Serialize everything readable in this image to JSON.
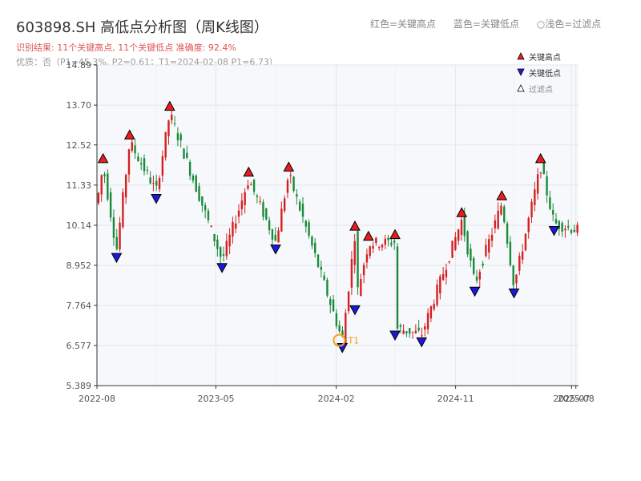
{
  "header": {
    "title": "603898.SH 高低点分析图（周K线图）",
    "subtitle": "识别结果: 11个关键高点, 11个关键低点  准确度: 92.4%",
    "info": "优质：否（P1=45.3%, P2=0.61；T1=2024-02-08 P1=6.73）",
    "legend_high": "红色=关键高点",
    "legend_low": "蓝色=关键低点",
    "legend_filtered": "○浅色=过滤点"
  },
  "colors": {
    "up": "#d42020",
    "down": "#1a8a3a",
    "high_marker": "#e81e1e",
    "low_marker": "#1a1ad8",
    "t1": "#f0a020"
  },
  "chart_data": {
    "type": "candlestick",
    "yticks": [
      "5.389",
      "6.577",
      "7.764",
      "8.952",
      "10.14",
      "11.33",
      "12.52",
      "13.70",
      "14.89"
    ],
    "ylim": [
      5.389,
      14.89
    ],
    "xticks": [
      "2022-08",
      "2023-05",
      "2024-02",
      "2024-11",
      "2025-07",
      "2025-08"
    ],
    "grid": true,
    "legend": {
      "position": "top-right",
      "entries": [
        "关键高点",
        "关键低点",
        "过滤点"
      ]
    },
    "key_highs": [
      {
        "x": "2022-08",
        "y": 11.9
      },
      {
        "x": "2022-10",
        "y": 12.6
      },
      {
        "x": "2023-01",
        "y": 13.45
      },
      {
        "x": "2023-07",
        "y": 11.5
      },
      {
        "x": "2023-10",
        "y": 11.65
      },
      {
        "x": "2024-03",
        "y": 9.9
      },
      {
        "x": "2024-04",
        "y": 9.6
      },
      {
        "x": "2024-06",
        "y": 9.65
      },
      {
        "x": "2024-11",
        "y": 10.3
      },
      {
        "x": "2025-02",
        "y": 10.8
      },
      {
        "x": "2025-05",
        "y": 11.9
      }
    ],
    "key_lows": [
      {
        "x": "2022-09",
        "y": 9.4
      },
      {
        "x": "2022-12",
        "y": 11.15
      },
      {
        "x": "2023-05",
        "y": 9.1
      },
      {
        "x": "2023-09",
        "y": 9.65
      },
      {
        "x": "2024-02",
        "y": 6.73
      },
      {
        "x": "2024-03",
        "y": 7.85
      },
      {
        "x": "2024-06",
        "y": 7.1
      },
      {
        "x": "2024-08",
        "y": 6.9
      },
      {
        "x": "2024-12",
        "y": 8.4
      },
      {
        "x": "2025-03",
        "y": 8.35
      },
      {
        "x": "2025-06",
        "y": 10.2
      }
    ],
    "t1": {
      "label": "T1",
      "x": "2024-02-08",
      "y": 6.73
    }
  }
}
